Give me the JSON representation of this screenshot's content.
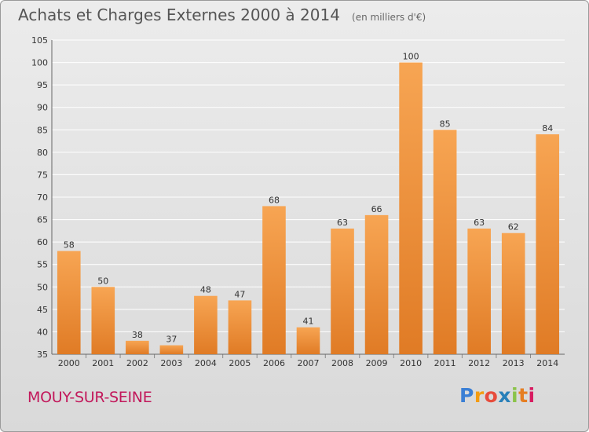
{
  "header": {
    "title": "Achats et Charges Externes 2000 à 2014",
    "unit": "(en milliers d'€)"
  },
  "footer": {
    "town": "MOUY-SUR-SEINE",
    "logo_letters": [
      "P",
      "r",
      "o",
      "x",
      "i",
      "t",
      "i"
    ],
    "logo_colors": [
      "#3a7fd5",
      "#f39c12",
      "#e74c3c",
      "#2980b9",
      "#8bc34a",
      "#e67e22",
      "#d81b60"
    ]
  },
  "colors": {
    "bar_top": "#f7a553",
    "bar_bottom": "#e07b25",
    "grid": "#ffffff",
    "axis_text": "#333333"
  },
  "chart_data": {
    "type": "bar",
    "title": "Achats et Charges Externes 2000 à 2014",
    "subtitle": "(en milliers d'€)",
    "categories": [
      "2000",
      "2001",
      "2002",
      "2003",
      "2004",
      "2005",
      "2006",
      "2007",
      "2008",
      "2009",
      "2010",
      "2011",
      "2012",
      "2013",
      "2014"
    ],
    "values": [
      58,
      50,
      38,
      37,
      48,
      47,
      68,
      41,
      63,
      66,
      100,
      85,
      63,
      62,
      84
    ],
    "ylim": [
      35,
      105
    ],
    "yticks": [
      35,
      40,
      45,
      50,
      55,
      60,
      65,
      70,
      75,
      80,
      85,
      90,
      95,
      100,
      105
    ],
    "grid": true,
    "data_labels": true
  }
}
